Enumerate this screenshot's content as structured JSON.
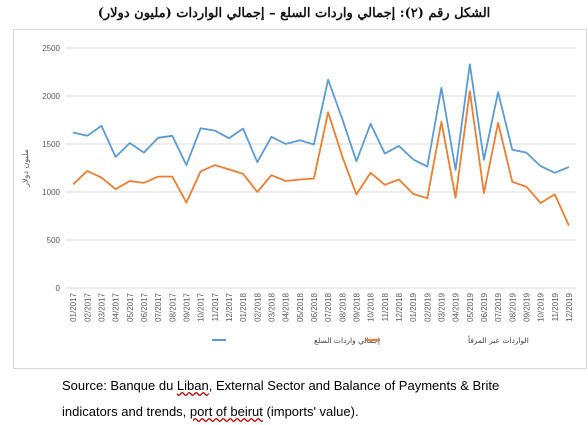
{
  "title": "الشكل رقم (٢): إجمالي واردات السلع – إجمالي الواردات (مليون دولار)",
  "source": {
    "line1_prefix": "Source: Banque du ",
    "line1_u1": "Liban",
    "line1_suffix": ", External Sector and Balance of Payments & Brite",
    "line2_prefix": "indicators and trends, ",
    "line2_u1": "port of beirut",
    "line2_suffix": " (imports' value)."
  },
  "chart_data": {
    "type": "line",
    "title": "",
    "ylabel": "مليون دولار",
    "xlabel": "",
    "ylim": [
      0,
      2500
    ],
    "yticks": [
      0,
      500,
      1000,
      1500,
      2000,
      2500
    ],
    "grid": true,
    "legend_position": "bottom",
    "categories": [
      "01/2017",
      "02/2017",
      "03/2017",
      "04/2017",
      "05/2017",
      "06/2017",
      "07/2017",
      "08/2017",
      "09/2017",
      "10/2017",
      "11/2017",
      "12/2017",
      "01/2018",
      "02/2018",
      "03/2018",
      "04/2018",
      "05/2018",
      "06/2018",
      "07/2018",
      "08/2018",
      "09/2018",
      "10/2018",
      "11/2018",
      "12/2018",
      "01/2019",
      "02/2019",
      "03/2019",
      "04/2019",
      "05/2019",
      "06/2019",
      "07/2019",
      "08/2019",
      "09/2019",
      "10/2019",
      "11/2019",
      "12/2019"
    ],
    "series": [
      {
        "name": "إجمالي واردات السلع",
        "color": "#5b9bd5",
        "values": [
          1620,
          1585,
          1690,
          1365,
          1510,
          1410,
          1565,
          1585,
          1280,
          1665,
          1640,
          1560,
          1660,
          1310,
          1575,
          1500,
          1540,
          1495,
          2170,
          1760,
          1320,
          1710,
          1400,
          1480,
          1340,
          1265,
          2085,
          1230,
          2330,
          1335,
          2040,
          1440,
          1410,
          1270,
          1200,
          1260
        ]
      },
      {
        "name": "الواردات عبر المرفأ",
        "color": "#ed7d31",
        "values": [
          1080,
          1220,
          1150,
          1030,
          1115,
          1095,
          1160,
          1160,
          890,
          1215,
          1280,
          1235,
          1190,
          1000,
          1175,
          1115,
          1130,
          1140,
          1830,
          1370,
          975,
          1200,
          1075,
          1130,
          980,
          935,
          1730,
          940,
          2050,
          990,
          1720,
          1105,
          1055,
          885,
          975,
          650
        ]
      }
    ]
  }
}
